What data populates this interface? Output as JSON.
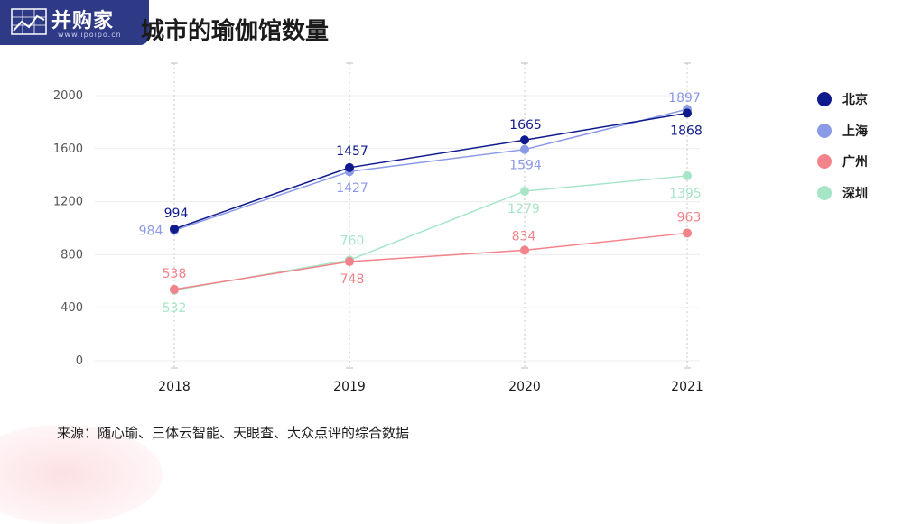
{
  "watermark": {
    "brand": "并购家",
    "url": "www.ipoipo.cn"
  },
  "title": "城市的瑜伽馆数量",
  "source": "来源：随心瑜、三体云智能、天眼查、大众点评的综合数据",
  "chart_data": {
    "type": "line",
    "title": "城市的瑜伽馆数量",
    "xlabel": "",
    "ylabel": "",
    "x": [
      "2018",
      "2019",
      "2020",
      "2021"
    ],
    "ylim": [
      0,
      2000
    ],
    "yticks": [
      0,
      400,
      800,
      1200,
      1600,
      2000
    ],
    "grid": true,
    "legend_position": "right",
    "series": [
      {
        "name": "北京",
        "color": "#0f1a8c",
        "values": [
          994,
          1457,
          1665,
          1868
        ],
        "labels": [
          "994",
          "1457",
          "1665",
          "1868"
        ]
      },
      {
        "name": "上海",
        "color": "#8b9ae6",
        "values": [
          984,
          1427,
          1594,
          1897
        ],
        "labels": [
          "984",
          "1427",
          "1594",
          "1897"
        ]
      },
      {
        "name": "广州",
        "color": "#f3838a",
        "values": [
          538,
          748,
          834,
          963
        ],
        "labels": [
          "538",
          "748",
          "834",
          "963"
        ]
      },
      {
        "name": "深圳",
        "color": "#a6e6c6",
        "values": [
          532,
          760,
          1279,
          1395
        ],
        "labels": [
          "532",
          "760",
          "1279",
          "1395"
        ]
      }
    ]
  }
}
